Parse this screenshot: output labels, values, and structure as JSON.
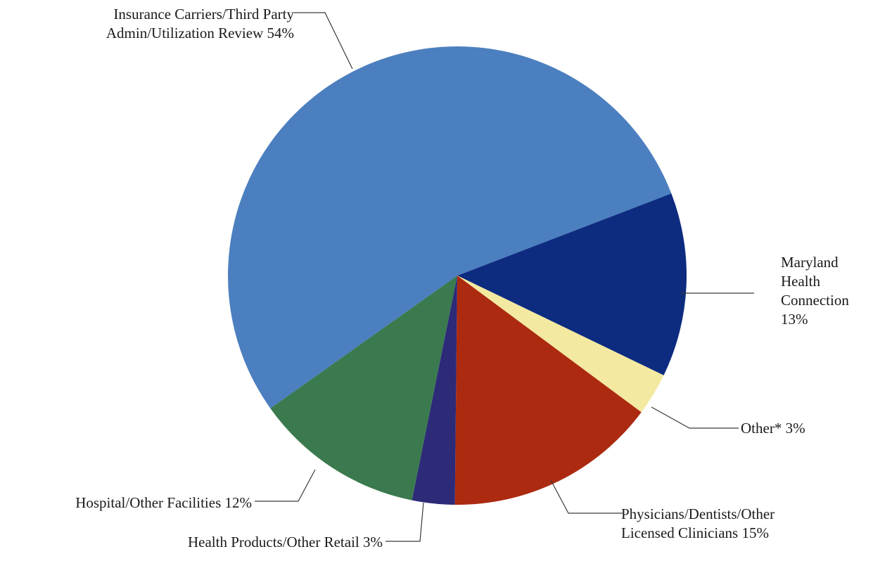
{
  "chart_data": {
    "type": "pie",
    "title": "",
    "slices": [
      {
        "label_lines": [
          "Maryland",
          "Health",
          "Connection",
          "13%"
        ],
        "value": 13,
        "color": "#0d2c80"
      },
      {
        "label_lines": [
          "Other* 3%"
        ],
        "value": 3,
        "color": "#f4e9a0"
      },
      {
        "label_lines": [
          "Physicians/Dentists/Other",
          "Licensed Clinicians 15%"
        ],
        "value": 15,
        "color": "#ab2a10"
      },
      {
        "label_lines": [
          "Health Products/Other Retail 3%"
        ],
        "value": 3,
        "color": "#2d2a78"
      },
      {
        "label_lines": [
          "Hospital/Other Facilities 12%"
        ],
        "value": 12,
        "color": "#3a7a4e"
      },
      {
        "label_lines": [
          "Insurance Carriers/Third Party",
          "Admin/Utilization Review 54%"
        ],
        "value": 54,
        "color": "#4c7fbf"
      }
    ]
  }
}
